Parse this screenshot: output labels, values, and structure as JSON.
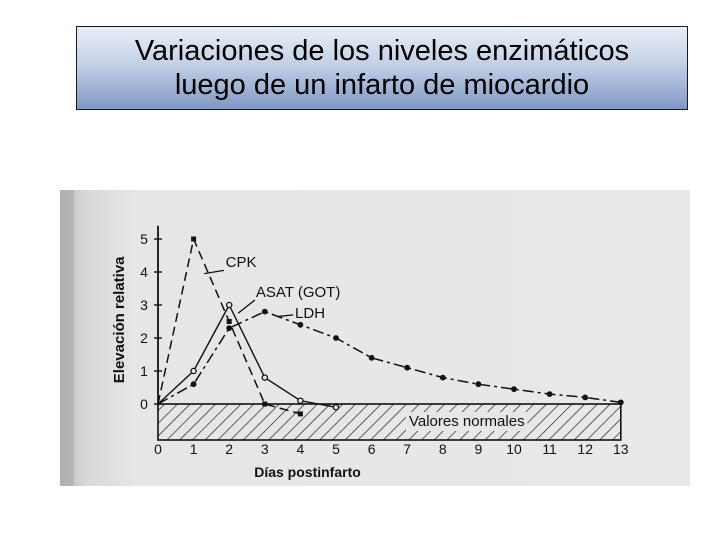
{
  "slide": {
    "title_line1": "Variaciones de los niveles enzimáticos",
    "title_line2": "luego de un infarto de miocardio"
  },
  "chart_data": {
    "type": "line",
    "title": "",
    "xlabel": "Días postinfarto",
    "ylabel": "Elevación relativa",
    "x_ticks": [
      0,
      1,
      2,
      3,
      4,
      5,
      6,
      7,
      8,
      9,
      10,
      11,
      12,
      13
    ],
    "x_tick_labels": [
      "0",
      "1",
      "2",
      "3",
      "4",
      "5",
      "6",
      "7",
      "8",
      "9",
      "10",
      "11",
      "12",
      "13"
    ],
    "y_ticks": [
      0,
      1,
      2,
      3,
      4,
      5
    ],
    "y_tick_labels": [
      "0",
      "1",
      "2",
      "3",
      "4",
      "5"
    ],
    "xlim": [
      0,
      13
    ],
    "ylim": [
      0,
      5.4
    ],
    "normal_band": {
      "label": "Valores normales",
      "y_max": 0
    },
    "series": [
      {
        "name": "CPK",
        "marker": "square-filled",
        "x": [
          0,
          1,
          2,
          3,
          4
        ],
        "y": [
          0,
          5,
          2.5,
          0,
          -0.3
        ]
      },
      {
        "name": "ASAT (GOT)",
        "marker": "circle-open",
        "x": [
          0,
          1,
          2,
          3,
          4,
          5
        ],
        "y": [
          0,
          1,
          3,
          0.8,
          0.1,
          -0.1
        ]
      },
      {
        "name": "LDH",
        "marker": "circle-filled",
        "x": [
          0,
          1,
          2,
          3,
          4,
          5,
          6,
          7,
          8,
          9,
          10,
          11,
          12,
          13
        ],
        "y": [
          0,
          0.6,
          2.3,
          2.8,
          2.4,
          2.0,
          1.4,
          1.1,
          0.8,
          0.6,
          0.45,
          0.3,
          0.2,
          0.05
        ]
      }
    ]
  }
}
